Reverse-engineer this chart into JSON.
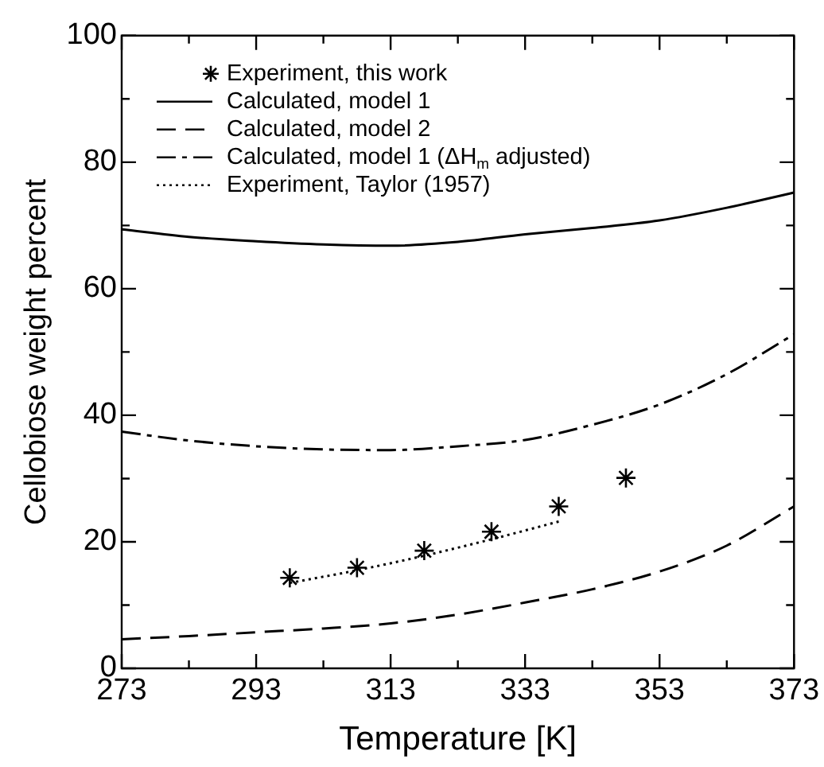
{
  "chart_data": {
    "type": "line",
    "xlabel": "Temperature [K]",
    "ylabel": "Cellobiose weight percent",
    "xlim": [
      273,
      373
    ],
    "ylim": [
      0,
      100
    ],
    "xticks": [
      273,
      {
        "value": 283,
        "label": null
      },
      293,
      {
        "value": 303,
        "label": null
      },
      313,
      {
        "value": 323,
        "label": null
      },
      333,
      {
        "value": 343,
        "label": null
      },
      353,
      {
        "value": 363,
        "label": null
      },
      373
    ],
    "yticks": [
      0,
      {
        "value": 10,
        "label": null
      },
      20,
      {
        "value": 30,
        "label": null
      },
      40,
      {
        "value": 50,
        "label": null
      },
      60,
      {
        "value": 70,
        "label": null
      },
      80,
      {
        "value": 90,
        "label": null
      },
      100
    ],
    "grid": false,
    "legend": "top left",
    "series": [
      {
        "name": "Experiment, this work",
        "type": "scatter",
        "marker": "cross",
        "color": "#000000",
        "x": [
          298,
          308,
          318,
          328,
          338,
          348
        ],
        "values": [
          14.3,
          15.9,
          18.6,
          21.6,
          25.6,
          30.1
        ]
      },
      {
        "name": "Calculated, model 1",
        "type": "line",
        "line_style": "solid",
        "marker": "none",
        "color": "#000000",
        "x": [
          273,
          283,
          293,
          303,
          313,
          323,
          333,
          343,
          353,
          363,
          373
        ],
        "values": [
          69.4,
          68.2,
          67.5,
          67.0,
          66.8,
          67.4,
          68.6,
          69.6,
          70.8,
          72.8,
          75.2
        ]
      },
      {
        "name": "Calculated, model 2",
        "type": "line",
        "line_style": "dashed",
        "marker": "none",
        "color": "#000000",
        "x": [
          273,
          283,
          293,
          303,
          313,
          323,
          333,
          343,
          353,
          363,
          373
        ],
        "values": [
          4.6,
          5.1,
          5.7,
          6.3,
          7.1,
          8.5,
          10.4,
          12.5,
          15.3,
          19.4,
          25.6
        ]
      },
      {
        "name": "Calculated, model 1 (ΔH$_{m}$ adjusted)",
        "type": "line",
        "line_style": "dashdot",
        "marker": "none",
        "color": "#000000",
        "x": [
          273,
          283,
          293,
          303,
          313,
          323,
          333,
          343,
          353,
          363,
          373
        ],
        "values": [
          37.4,
          36.0,
          35.1,
          34.6,
          34.5,
          35.1,
          36.1,
          38.5,
          41.7,
          46.5,
          52.8
        ]
      },
      {
        "name": "Experiment, Taylor (1957)",
        "type": "line",
        "line_style": "dotted",
        "marker": "none",
        "color": "#000000",
        "x": [
          298,
          308,
          318,
          328,
          338
        ],
        "values": [
          13.5,
          15.5,
          17.8,
          20.4,
          23.2
        ]
      }
    ]
  }
}
